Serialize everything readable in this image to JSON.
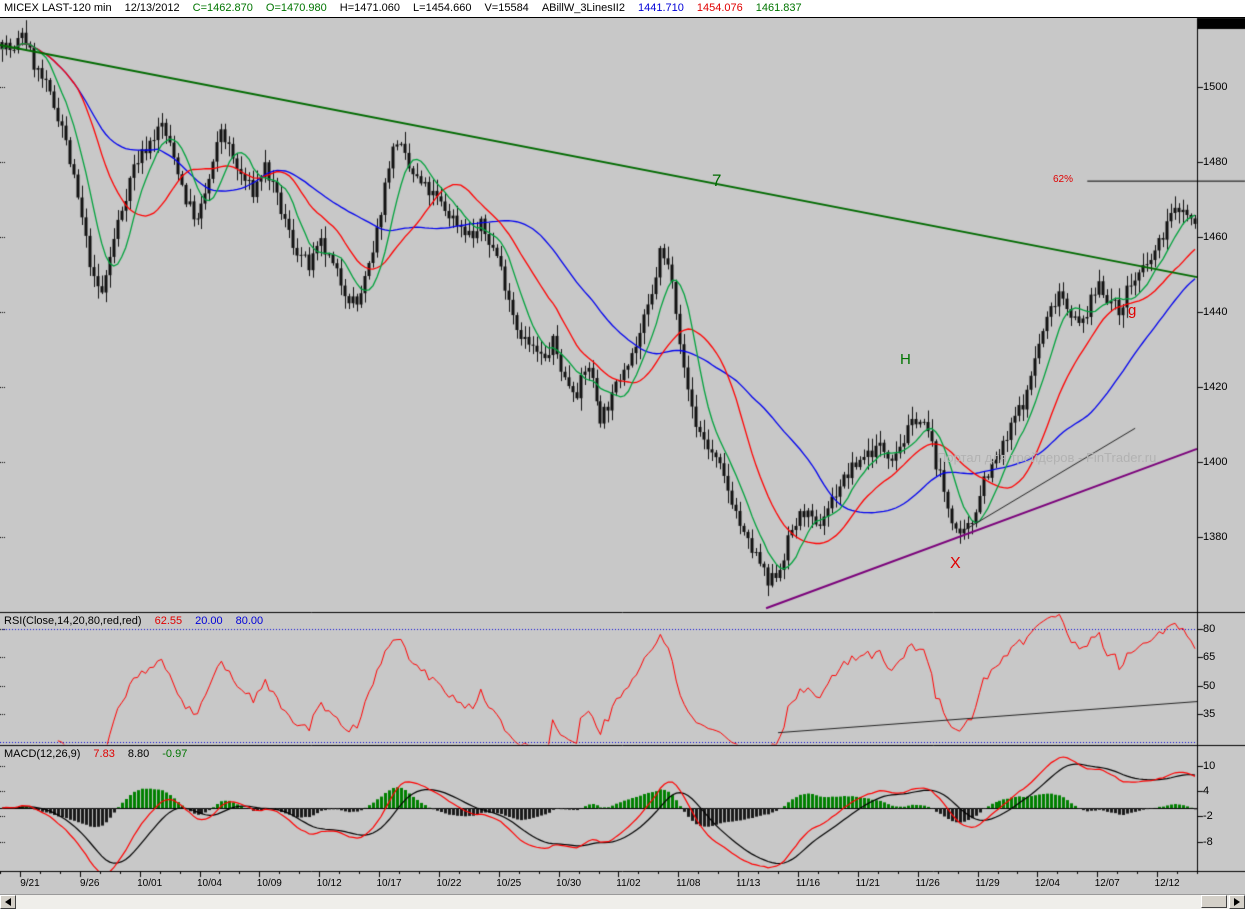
{
  "header": {
    "symbol": "MICEX LAST-120 min",
    "date": "12/13/2012",
    "close": "C=1462.870",
    "open": "O=1470.980",
    "high": "H=1471.060",
    "low": "L=1454.660",
    "volume": "V=15584",
    "indicator_name": "ABillW_3LinesII2",
    "ma_blue": "1441.710",
    "ma_red": "1454.076",
    "ma_green": "1461.837"
  },
  "rsi_header": {
    "label": "RSI(Close,14,20,80,red,red)",
    "value": "62.55",
    "low_level": "20.00",
    "high_level": "80.00"
  },
  "macd_header": {
    "label": "MACD(12,26,9)",
    "macd": "7.83",
    "signal": "8.80",
    "hist": "-0.97"
  },
  "annotations": {
    "wave7": "7",
    "waveH": "H",
    "waveG": "g",
    "waveX": "X",
    "fib": "62%",
    "watermark": "Портал для трейдеров - FinTrader.ru"
  },
  "chart_data": {
    "type": "candlestick",
    "title": "MICEX LAST-120 min",
    "timeframe": "120 min",
    "session_date": "12/13/2012",
    "last_ohlcv": {
      "open": 1470.98,
      "high": 1471.06,
      "low": 1454.66,
      "close": 1462.87,
      "volume": 15584
    },
    "bars": 300,
    "price_axis": {
      "ticks": [
        1500,
        1480,
        1460,
        1440,
        1420,
        1400,
        1380
      ],
      "min": 1362,
      "max": 1516
    },
    "x_axis": {
      "labels": [
        "9/21",
        "9/26",
        "10/01",
        "10/04",
        "10/09",
        "10/12",
        "10/17",
        "10/22",
        "10/25",
        "10/30",
        "11/02",
        "11/08",
        "11/13",
        "11/16",
        "11/21",
        "11/26",
        "11/29",
        "12/04",
        "12/07",
        "12/12"
      ]
    },
    "close_anchors": [
      [
        0,
        1512
      ],
      [
        3,
        1509
      ],
      [
        5,
        1515
      ],
      [
        8,
        1506
      ],
      [
        11,
        1500
      ],
      [
        15,
        1490
      ],
      [
        19,
        1470
      ],
      [
        23,
        1448
      ],
      [
        25,
        1445
      ],
      [
        29,
        1464
      ],
      [
        33,
        1479
      ],
      [
        38,
        1487
      ],
      [
        40,
        1490
      ],
      [
        44,
        1478
      ],
      [
        46,
        1470
      ],
      [
        49,
        1464
      ],
      [
        53,
        1479
      ],
      [
        55,
        1489
      ],
      [
        59,
        1478
      ],
      [
        63,
        1472
      ],
      [
        66,
        1479
      ],
      [
        69,
        1470
      ],
      [
        73,
        1458
      ],
      [
        77,
        1452
      ],
      [
        80,
        1458
      ],
      [
        83,
        1452
      ],
      [
        87,
        1444
      ],
      [
        89,
        1442
      ],
      [
        93,
        1455
      ],
      [
        97,
        1480
      ],
      [
        99,
        1486
      ],
      [
        102,
        1478
      ],
      [
        105,
        1474
      ],
      [
        109,
        1470
      ],
      [
        112,
        1466
      ],
      [
        115,
        1463
      ],
      [
        118,
        1460
      ],
      [
        120,
        1463
      ],
      [
        124,
        1455
      ],
      [
        127,
        1444
      ],
      [
        129,
        1436
      ],
      [
        132,
        1431
      ],
      [
        136,
        1427
      ],
      [
        138,
        1432
      ],
      [
        141,
        1422
      ],
      [
        144,
        1419
      ],
      [
        147,
        1426
      ],
      [
        150,
        1412
      ],
      [
        153,
        1417
      ],
      [
        156,
        1426
      ],
      [
        159,
        1431
      ],
      [
        163,
        1444
      ],
      [
        165,
        1456
      ],
      [
        168,
        1450
      ],
      [
        171,
        1424
      ],
      [
        174,
        1410
      ],
      [
        177,
        1404
      ],
      [
        180,
        1398
      ],
      [
        183,
        1390
      ],
      [
        186,
        1380
      ],
      [
        190,
        1373
      ],
      [
        192,
        1367
      ],
      [
        195,
        1372
      ],
      [
        198,
        1382
      ],
      [
        201,
        1387
      ],
      [
        204,
        1382
      ],
      [
        207,
        1388
      ],
      [
        210,
        1394
      ],
      [
        213,
        1398
      ],
      [
        216,
        1402
      ],
      [
        220,
        1404
      ],
      [
        223,
        1402
      ],
      [
        226,
        1406
      ],
      [
        229,
        1412
      ],
      [
        232,
        1408
      ],
      [
        234,
        1400
      ],
      [
        237,
        1388
      ],
      [
        240,
        1379
      ],
      [
        243,
        1384
      ],
      [
        246,
        1396
      ],
      [
        249,
        1400
      ],
      [
        252,
        1406
      ],
      [
        254,
        1412
      ],
      [
        257,
        1418
      ],
      [
        259,
        1428
      ],
      [
        262,
        1438
      ],
      [
        265,
        1446
      ],
      [
        267,
        1442
      ],
      [
        270,
        1436
      ],
      [
        272,
        1440
      ],
      [
        275,
        1448
      ],
      [
        277,
        1444
      ],
      [
        280,
        1440
      ],
      [
        282,
        1446
      ],
      [
        285,
        1450
      ],
      [
        287,
        1452
      ],
      [
        290,
        1458
      ],
      [
        292,
        1464
      ],
      [
        295,
        1468
      ],
      [
        297,
        1466
      ],
      [
        299,
        1463
      ]
    ],
    "moving_averages": [
      {
        "name": "slow",
        "color": "#0000ee",
        "period": 40,
        "last_value": 1441.71
      },
      {
        "name": "mid",
        "color": "#ff0000",
        "period": 20,
        "last_value": 1454.076
      },
      {
        "name": "fast",
        "color": "#00a23c",
        "period": 8,
        "last_value": 1461.837
      }
    ],
    "trendlines": [
      {
        "name": "major-downtrend",
        "space": "price",
        "color": "#006a00",
        "width": 2,
        "p1": [
          0,
          1511.2
        ],
        "p2": [
          300,
          1449.3
        ]
      },
      {
        "name": "purple-uptrend",
        "space": "price",
        "color": "#7a007a",
        "width": 2,
        "p1": [
          192,
          1361.0
        ],
        "p2": [
          300,
          1403.5
        ]
      },
      {
        "name": "minor-uptrend",
        "space": "price",
        "color": "#222222",
        "width": 1,
        "p1": [
          242,
          1382.0
        ],
        "p2": [
          284.5,
          1409.0
        ]
      },
      {
        "name": "fib-62-level",
        "space": "price",
        "color": "#000000",
        "width": 1,
        "p1": [
          272.5,
          1474.9
        ],
        "p2": [
          312,
          1474.9
        ]
      },
      {
        "name": "rsi-support",
        "space": "rsi",
        "color": "#222222",
        "width": 1,
        "p1": [
          195,
          25
        ],
        "p2": [
          300,
          41.5
        ]
      }
    ],
    "rsi": {
      "period": 14,
      "levels": [
        20,
        80
      ],
      "level_color": "#0000d8",
      "color": "#ff0000",
      "ticks": [
        80,
        65,
        50,
        35
      ],
      "last": 62.55
    },
    "macd": {
      "fast": 12,
      "slow": 26,
      "signal": 9,
      "color": "#ff0000",
      "signal_color": "#000000",
      "hist_pos": "#008000",
      "hist_neg": "#1a1a1a",
      "ticks": [
        10,
        4,
        -2,
        -8
      ],
      "last_macd": 7.83,
      "last_signal": 8.8,
      "last_hist": -0.97
    },
    "background": "#c8c8c8"
  }
}
